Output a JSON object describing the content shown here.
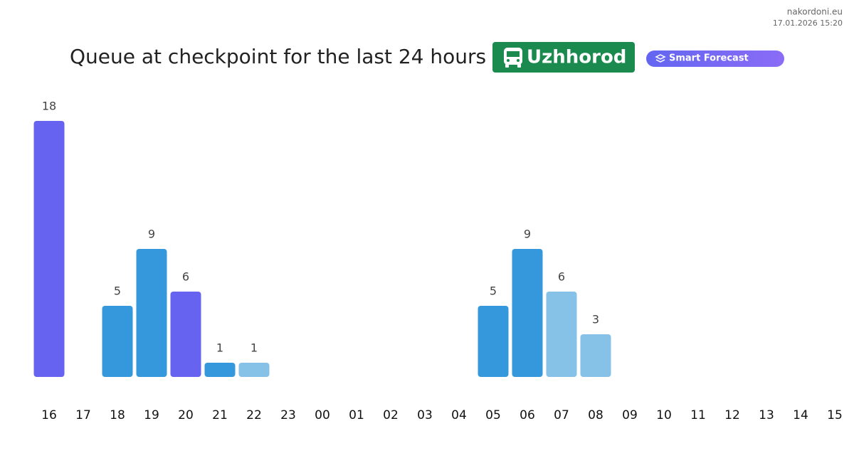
{
  "site": "nakordoni.eu",
  "timestamp": "17.01.2026 15:20",
  "badge": "Uzhhorod",
  "forecast_button": "Smart Forecast",
  "chart_data": {
    "type": "bar",
    "title": "Queue at checkpoint for the last 24 hours",
    "categories": [
      "16",
      "17",
      "18",
      "19",
      "20",
      "21",
      "22",
      "23",
      "00",
      "01",
      "02",
      "03",
      "04",
      "05",
      "06",
      "07",
      "08",
      "09",
      "10",
      "11",
      "12",
      "13",
      "14",
      "15"
    ],
    "values": [
      18,
      null,
      5,
      9,
      6,
      1,
      1,
      null,
      null,
      null,
      null,
      null,
      null,
      5,
      9,
      6,
      3,
      null,
      null,
      null,
      null,
      null,
      null,
      null
    ],
    "colors": [
      "#6563f0",
      null,
      "#3698dc",
      "#3698dc",
      "#6563f0",
      "#3698dc",
      "#86c1e8",
      null,
      null,
      null,
      null,
      null,
      null,
      "#3698dc",
      "#3698dc",
      "#86c1e8",
      "#86c1e8",
      null,
      null,
      null,
      null,
      null,
      null,
      null
    ]
  }
}
